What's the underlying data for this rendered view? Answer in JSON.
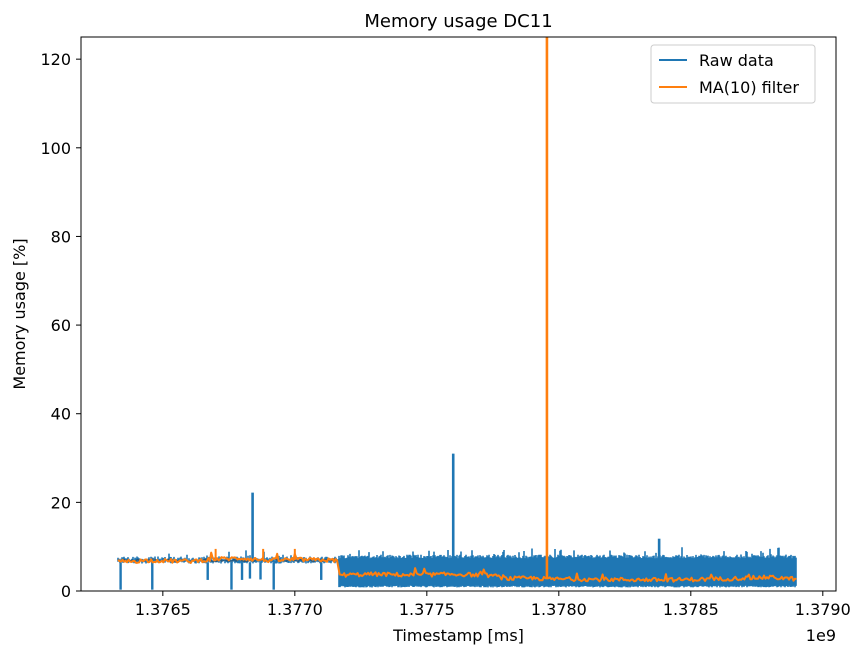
{
  "chart_data": {
    "type": "line",
    "title": "Memory usage DC11",
    "xlabel": "Timestamp [ms]",
    "ylabel": "Memory usage [%]",
    "x_offset_label": "1e9",
    "xlim": [
      1.37619,
      1.37905
    ],
    "ylim": [
      0,
      125
    ],
    "xticks": [
      1.3765,
      1.377,
      1.3775,
      1.378,
      1.3785,
      1.379
    ],
    "xtick_labels": [
      "1.3765",
      "1.3770",
      "1.3775",
      "1.3780",
      "1.3785",
      "1.3790"
    ],
    "yticks": [
      0,
      20,
      40,
      60,
      80,
      100,
      120
    ],
    "ytick_labels": [
      "0",
      "20",
      "40",
      "60",
      "80",
      "100",
      "120"
    ],
    "grid": false,
    "legend_position": "top-right",
    "colors": {
      "raw": "#1f77b4",
      "ma": "#ff7f0e"
    },
    "series": [
      {
        "name": "Raw data",
        "key": "raw",
        "x_range": [
          1.37633,
          1.3789
        ],
        "band_low_early": 6.2,
        "band_high_early": 7.8,
        "band_low_late": 0.8,
        "band_high_late": 7.4,
        "step_x": 1.377165,
        "spikes": [
          {
            "x": 1.37684,
            "y": 22.2
          },
          {
            "x": 1.3776,
            "y": 31.0
          },
          {
            "x": 1.37838,
            "y": 11.8
          }
        ],
        "dips": [
          {
            "x": 1.37634,
            "y": 0.3
          },
          {
            "x": 1.37646,
            "y": 0.3
          },
          {
            "x": 1.37667,
            "y": 2.5
          },
          {
            "x": 1.37676,
            "y": 0.3
          },
          {
            "x": 1.3768,
            "y": 2.5
          },
          {
            "x": 1.37683,
            "y": 2.8
          },
          {
            "x": 1.37687,
            "y": 2.6
          },
          {
            "x": 1.37692,
            "y": 0.3
          },
          {
            "x": 1.3771,
            "y": 2.5
          }
        ]
      },
      {
        "name": "MA(10) filter",
        "key": "ma",
        "points": [
          [
            1.37633,
            6.6
          ],
          [
            1.37645,
            6.9
          ],
          [
            1.3766,
            6.7
          ],
          [
            1.3767,
            7.2
          ],
          [
            1.3768,
            7.4
          ],
          [
            1.3769,
            6.9
          ],
          [
            1.377,
            7.1
          ],
          [
            1.3771,
            7.0
          ],
          [
            1.37716,
            6.9
          ],
          [
            1.37717,
            3.6
          ],
          [
            1.3773,
            3.8
          ],
          [
            1.37745,
            3.6
          ],
          [
            1.3776,
            3.8
          ],
          [
            1.37775,
            3.5
          ],
          [
            1.3778,
            2.8
          ],
          [
            1.3779,
            2.9
          ],
          [
            1.37796,
            2.7
          ],
          [
            1.378,
            2.7
          ],
          [
            1.3782,
            2.6
          ],
          [
            1.3784,
            2.5
          ],
          [
            1.3786,
            2.7
          ],
          [
            1.3788,
            3.1
          ],
          [
            1.3789,
            2.7
          ]
        ],
        "spikes": [
          {
            "x": 1.377955,
            "y": 125
          }
        ]
      }
    ]
  }
}
